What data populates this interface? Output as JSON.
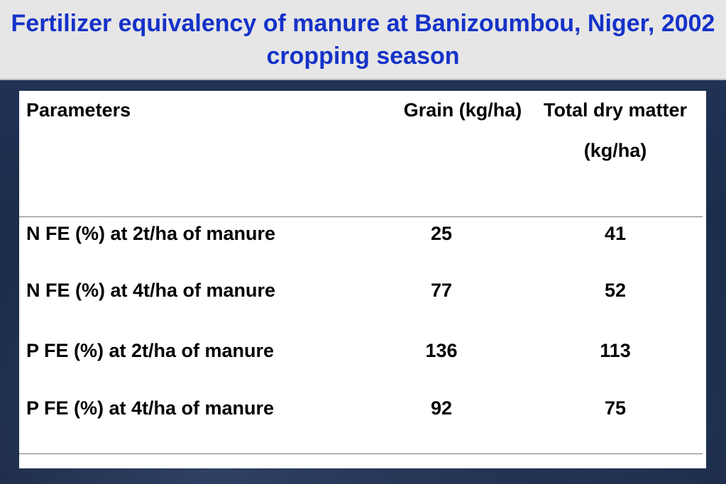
{
  "slide": {
    "title": "Fertilizer equivalency of manure at Banizoumbou, Niger, 2002 cropping season"
  },
  "table": {
    "headers": {
      "parameters": "Parameters",
      "grain": "Grain (kg/ha)",
      "total_dry_matter": "Total dry matter (kg/ha)"
    },
    "rows": [
      {
        "parameter": "N  FE (%) at 2t/ha of manure",
        "grain": "25",
        "tdm": "41"
      },
      {
        "parameter": "N  FE (%) at 4t/ha of manure",
        "grain": "77",
        "tdm": "52"
      },
      {
        "parameter": "P  FE (%) at 2t/ha of manure",
        "grain": "136",
        "tdm": "113"
      },
      {
        "parameter": "P  FE (%) at 4t/ha of manure",
        "grain": "92",
        "tdm": "75"
      }
    ]
  }
}
